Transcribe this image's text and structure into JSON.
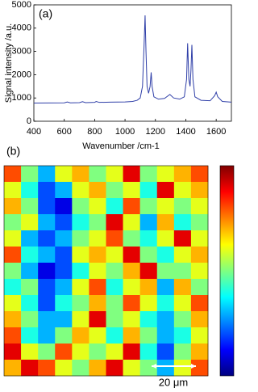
{
  "chart_data": [
    {
      "type": "line",
      "annotation": "(a)",
      "xlabel": "Wavenumber /cm-1",
      "ylabel": "Signal intensity /a.u.",
      "xlim": [
        400,
        1700
      ],
      "xticks": [
        400,
        600,
        800,
        1000,
        1200,
        1400,
        1600
      ],
      "ylim": [
        0,
        5000
      ],
      "yticks": [
        0,
        1000,
        2000,
        3000,
        4000,
        5000
      ],
      "color": "#2f3fa8",
      "x": [
        400,
        500,
        600,
        620,
        640,
        700,
        720,
        740,
        800,
        810,
        830,
        900,
        1000,
        1050,
        1080,
        1100,
        1115,
        1125,
        1132,
        1138,
        1145,
        1155,
        1165,
        1172,
        1178,
        1190,
        1220,
        1260,
        1295,
        1320,
        1360,
        1390,
        1405,
        1412,
        1420,
        1428,
        1434,
        1440,
        1447,
        1460,
        1500,
        1560,
        1590,
        1600,
        1610,
        1640,
        1700
      ],
      "values": [
        780,
        785,
        790,
        830,
        790,
        800,
        840,
        800,
        810,
        850,
        810,
        820,
        830,
        850,
        900,
        1000,
        1500,
        3200,
        4550,
        3000,
        1500,
        1200,
        1500,
        2100,
        1500,
        1050,
        950,
        980,
        1150,
        1000,
        950,
        1050,
        1800,
        3350,
        1800,
        1500,
        2200,
        3280,
        1800,
        1050,
        900,
        880,
        1100,
        1250,
        1050,
        850,
        820
      ]
    },
    {
      "type": "heatmap",
      "annotation": "(b)",
      "scale_bar_label": "20 μm",
      "clim": [
        0,
        1
      ],
      "values": [
        [
          0.8,
          0.5,
          0.3,
          0.6,
          0.7,
          0.5,
          0.6,
          0.9,
          0.5,
          0.6,
          0.7,
          0.8
        ],
        [
          0.6,
          0.4,
          0.2,
          0.3,
          0.6,
          0.7,
          0.5,
          0.6,
          0.4,
          0.9,
          0.6,
          0.7
        ],
        [
          0.7,
          0.5,
          0.2,
          0.1,
          0.5,
          0.6,
          0.4,
          0.8,
          0.5,
          0.6,
          0.5,
          0.6
        ],
        [
          0.5,
          0.6,
          0.3,
          0.2,
          0.4,
          0.5,
          0.9,
          0.6,
          0.3,
          0.7,
          0.4,
          0.5
        ],
        [
          0.6,
          0.3,
          0.2,
          0.3,
          0.5,
          0.6,
          0.8,
          0.5,
          0.4,
          0.6,
          0.9,
          0.6
        ],
        [
          0.8,
          0.4,
          0.3,
          0.2,
          0.6,
          0.7,
          0.6,
          0.9,
          0.5,
          0.4,
          0.6,
          0.7
        ],
        [
          0.5,
          0.3,
          0.1,
          0.2,
          0.4,
          0.6,
          0.5,
          0.7,
          0.9,
          0.5,
          0.5,
          0.6
        ],
        [
          0.4,
          0.5,
          0.2,
          0.3,
          0.6,
          0.8,
          0.4,
          0.6,
          0.7,
          0.3,
          0.7,
          0.5
        ],
        [
          0.6,
          0.4,
          0.2,
          0.4,
          0.5,
          0.7,
          0.5,
          0.8,
          0.6,
          0.4,
          0.6,
          0.8
        ],
        [
          0.7,
          0.5,
          0.3,
          0.3,
          0.6,
          0.9,
          0.5,
          0.6,
          0.4,
          0.3,
          0.5,
          0.7
        ],
        [
          0.8,
          0.4,
          0.3,
          0.5,
          0.7,
          0.6,
          0.4,
          0.7,
          0.5,
          0.3,
          0.4,
          0.6
        ],
        [
          0.9,
          0.6,
          0.5,
          0.8,
          0.6,
          0.5,
          0.6,
          0.9,
          0.4,
          0.2,
          0.5,
          0.7
        ],
        [
          0.7,
          0.9,
          0.8,
          0.6,
          0.5,
          0.7,
          0.9,
          0.6,
          0.5,
          0.3,
          0.6,
          0.8
        ]
      ]
    }
  ]
}
